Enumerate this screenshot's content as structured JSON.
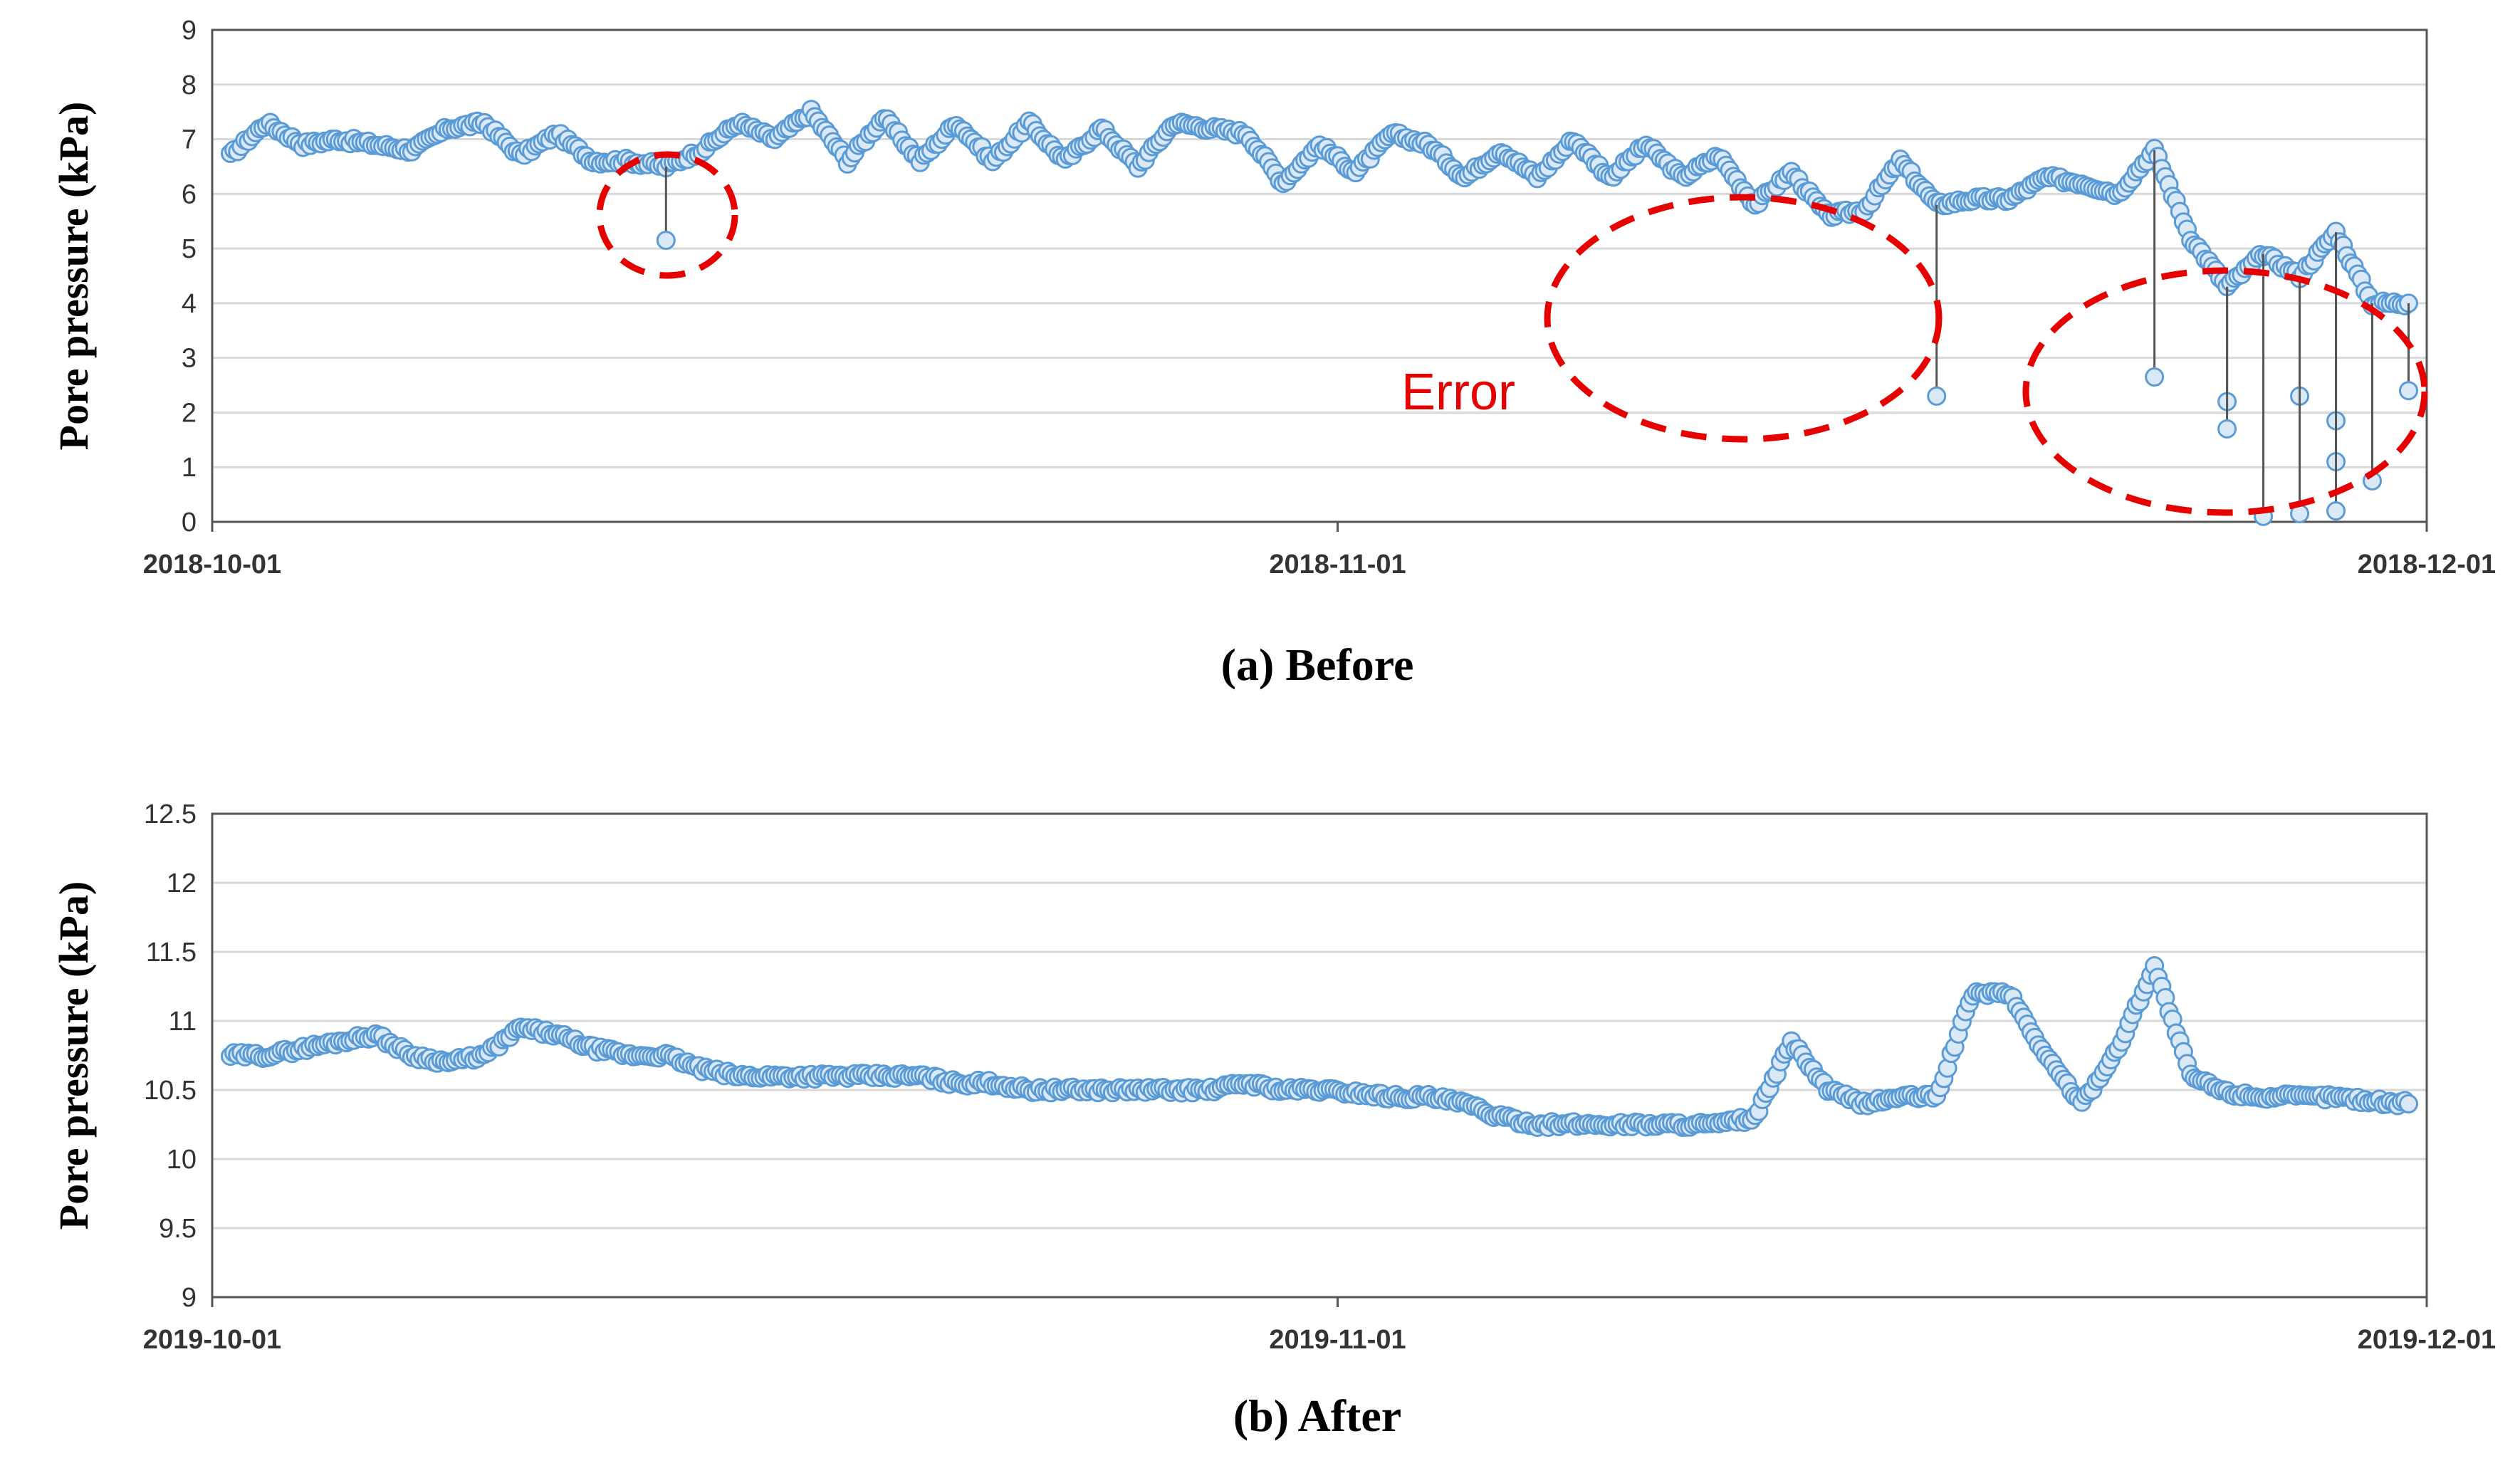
{
  "figure": {
    "panels": [
      {
        "caption": "(a) Before",
        "annotation": {
          "text": "Error",
          "color": "#e60000"
        },
        "ylabel": "Pore pressure (kPa)"
      },
      {
        "caption": "(b) After",
        "ylabel": "Pore pressure (kPa)"
      }
    ]
  },
  "chart_data": [
    {
      "type": "line",
      "title": "(a) Before",
      "xlabel": "",
      "ylabel": "Pore pressure (kPa)",
      "x_range": [
        "2018-10-01",
        "2018-12-01"
      ],
      "x_ticks": [
        "2018-10-01",
        "2018-11-01",
        "2018-12-01"
      ],
      "ylim": [
        0,
        9
      ],
      "y_ticks": [
        0,
        1,
        2,
        3,
        4,
        5,
        6,
        7,
        8,
        9
      ],
      "grid": "horizontal",
      "marker_color": "#5b9bd5",
      "error_annotation": "Error",
      "series": [
        {
          "x": [
            "2018-10-01",
            "2018-10-02",
            "2018-10-03",
            "2018-10-04",
            "2018-10-05",
            "2018-10-06",
            "2018-10-07",
            "2018-10-08",
            "2018-10-09",
            "2018-10-10",
            "2018-10-11",
            "2018-10-12",
            "2018-10-13",
            "2018-10-14",
            "2018-10-15",
            "2018-10-16",
            "2018-10-17",
            "2018-10-18",
            "2018-10-19",
            "2018-10-20",
            "2018-10-21",
            "2018-10-22",
            "2018-10-23",
            "2018-10-24",
            "2018-10-25",
            "2018-10-26",
            "2018-10-27",
            "2018-10-28",
            "2018-10-29",
            "2018-10-30",
            "2018-10-31",
            "2018-11-01",
            "2018-11-02",
            "2018-11-03",
            "2018-11-04",
            "2018-11-05",
            "2018-11-06",
            "2018-11-07",
            "2018-11-08",
            "2018-11-09",
            "2018-11-10",
            "2018-11-11",
            "2018-11-12",
            "2018-11-13",
            "2018-11-14",
            "2018-11-15",
            "2018-11-16",
            "2018-11-17",
            "2018-11-18",
            "2018-11-19",
            "2018-11-20",
            "2018-11-21",
            "2018-11-22",
            "2018-11-23",
            "2018-11-24",
            "2018-11-25",
            "2018-11-26",
            "2018-11-27",
            "2018-11-28",
            "2018-11-29",
            "2018-11-30"
          ],
          "values": [
            6.7,
            7.3,
            6.9,
            7.0,
            6.9,
            6.8,
            7.2,
            7.3,
            6.7,
            7.1,
            6.6,
            6.6,
            6.5,
            6.8,
            7.3,
            7.0,
            7.5,
            6.6,
            7.4,
            6.6,
            7.3,
            6.6,
            7.3,
            6.6,
            7.2,
            6.5,
            7.3,
            7.2,
            7.1,
            6.2,
            6.9,
            6.4,
            7.1,
            6.9,
            6.3,
            6.8,
            6.3,
            7.0,
            6.3,
            6.9,
            6.3,
            6.7,
            5.8,
            6.4,
            5.6,
            5.7,
            6.6,
            5.8,
            5.9,
            5.9,
            6.3,
            6.2,
            6.0,
            6.8,
            5.2,
            4.3,
            4.9,
            4.5,
            5.3,
            4.0,
            4.0
          ]
        }
      ],
      "error_points": [
        {
          "x": "2018-10-13",
          "value": 5.15
        },
        {
          "x": "2018-11-17",
          "value": 2.3
        },
        {
          "x": "2018-11-23",
          "value": 2.65
        },
        {
          "x": "2018-11-25",
          "value": 2.2
        },
        {
          "x": "2018-11-25",
          "value": 1.7
        },
        {
          "x": "2018-11-26",
          "value": 0.1
        },
        {
          "x": "2018-11-27",
          "value": 2.3
        },
        {
          "x": "2018-11-27",
          "value": 0.15
        },
        {
          "x": "2018-11-28",
          "value": 1.85
        },
        {
          "x": "2018-11-28",
          "value": 1.1
        },
        {
          "x": "2018-11-28",
          "value": 0.2
        },
        {
          "x": "2018-11-29",
          "value": 0.75
        },
        {
          "x": "2018-11-30",
          "value": 2.4
        }
      ]
    },
    {
      "type": "line",
      "title": "(b) After",
      "xlabel": "",
      "ylabel": "Pore pressure (kPa)",
      "x_range": [
        "2019-10-01",
        "2019-12-01"
      ],
      "x_ticks": [
        "2019-10-01",
        "2019-11-01",
        "2019-12-01"
      ],
      "ylim": [
        9,
        12.5
      ],
      "y_ticks": [
        9,
        9.5,
        10,
        10.5,
        11,
        11.5,
        12,
        12.5
      ],
      "grid": "horizontal",
      "marker_color": "#5b9bd5",
      "series": [
        {
          "x": [
            "2019-10-01",
            "2019-10-02",
            "2019-10-03",
            "2019-10-04",
            "2019-10-05",
            "2019-10-06",
            "2019-10-07",
            "2019-10-08",
            "2019-10-09",
            "2019-10-10",
            "2019-10-11",
            "2019-10-12",
            "2019-10-13",
            "2019-10-14",
            "2019-10-15",
            "2019-10-16",
            "2019-10-17",
            "2019-10-18",
            "2019-10-19",
            "2019-10-20",
            "2019-10-21",
            "2019-10-22",
            "2019-10-23",
            "2019-10-24",
            "2019-10-25",
            "2019-10-26",
            "2019-10-27",
            "2019-10-28",
            "2019-10-29",
            "2019-10-30",
            "2019-10-31",
            "2019-11-01",
            "2019-11-02",
            "2019-11-03",
            "2019-11-04",
            "2019-11-05",
            "2019-11-06",
            "2019-11-07",
            "2019-11-08",
            "2019-11-09",
            "2019-11-10",
            "2019-11-11",
            "2019-11-12",
            "2019-11-13",
            "2019-11-14",
            "2019-11-15",
            "2019-11-16",
            "2019-11-17",
            "2019-11-18",
            "2019-11-19",
            "2019-11-20",
            "2019-11-21",
            "2019-11-22",
            "2019-11-23",
            "2019-11-24",
            "2019-11-25",
            "2019-11-26",
            "2019-11-27",
            "2019-11-28",
            "2019-11-29",
            "2019-11-30"
          ],
          "values": [
            10.75,
            10.75,
            10.8,
            10.85,
            10.9,
            10.75,
            10.7,
            10.75,
            10.95,
            10.9,
            10.8,
            10.75,
            10.75,
            10.65,
            10.6,
            10.6,
            10.6,
            10.6,
            10.6,
            10.6,
            10.55,
            10.55,
            10.5,
            10.5,
            10.5,
            10.5,
            10.5,
            10.5,
            10.55,
            10.5,
            10.5,
            10.48,
            10.45,
            10.45,
            10.4,
            10.3,
            10.25,
            10.25,
            10.25,
            10.25,
            10.25,
            10.25,
            10.3,
            10.85,
            10.5,
            10.4,
            10.45,
            10.45,
            11.2,
            11.2,
            10.75,
            10.4,
            10.8,
            11.4,
            10.6,
            10.48,
            10.45,
            10.45,
            10.45,
            10.42,
            10.4
          ]
        }
      ]
    }
  ]
}
